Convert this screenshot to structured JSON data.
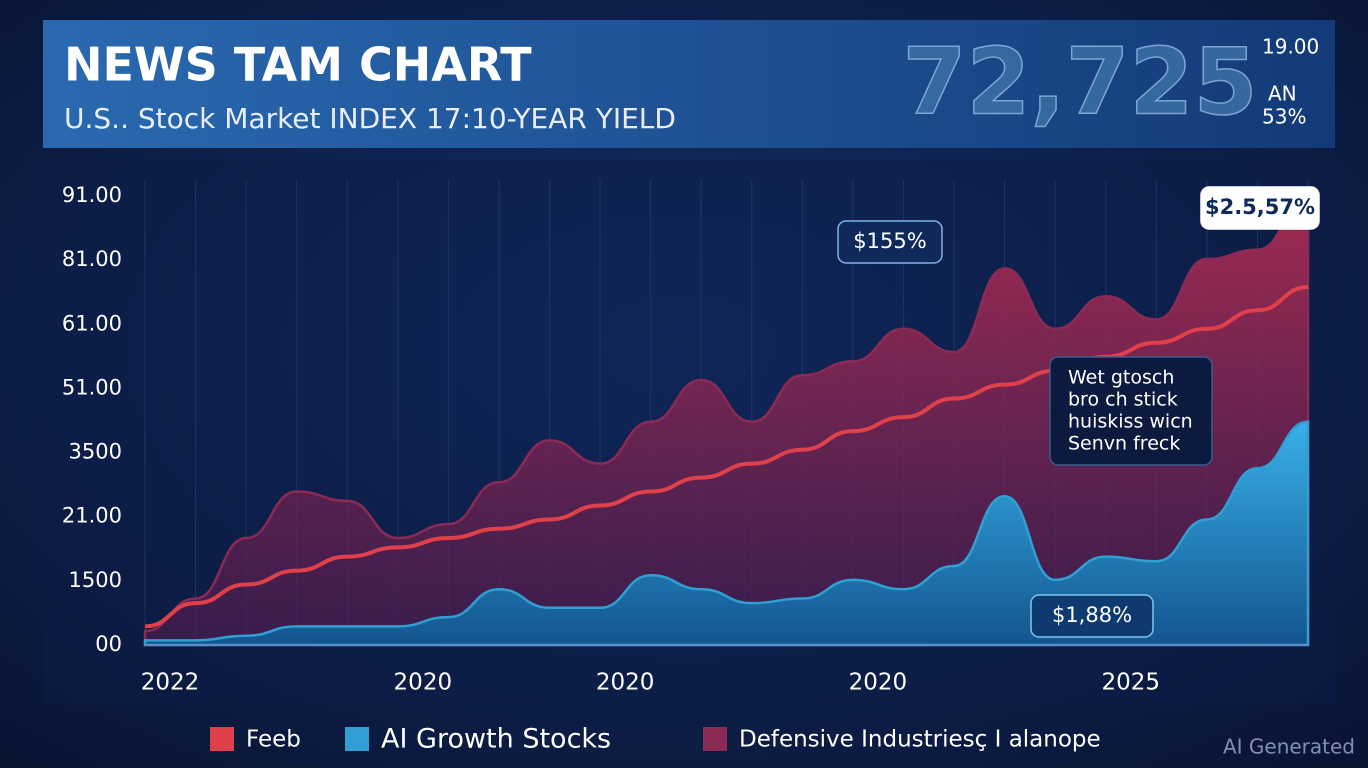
{
  "chart_data": {
    "type": "area",
    "title": "NEWS TAM CHART",
    "subtitle": "U.S.. Stock Market INDEX 17:10-YEAR YIELD",
    "headline_number": "72,725",
    "headline_side": [
      "19.00",
      "AN",
      "53%"
    ],
    "y_axis_labels": [
      "91.00",
      "81.00",
      "61.00",
      "51.00",
      "3500",
      "21.00",
      "1500",
      "00"
    ],
    "ylim": [
      0,
      100
    ],
    "categories": [
      "2022",
      null,
      null,
      null,
      null,
      "2020",
      null,
      null,
      null,
      "2020",
      null,
      null,
      null,
      null,
      "2020",
      null,
      null,
      null,
      null,
      "2025",
      null,
      null,
      null,
      null
    ],
    "series": [
      {
        "name": "Feeb",
        "color": "#e0404a",
        "kind": "line",
        "values": [
          4,
          9,
          13,
          16,
          19,
          21,
          23,
          25,
          27,
          30,
          33,
          36,
          39,
          42,
          46,
          49,
          53,
          56,
          59,
          62,
          65,
          68,
          72,
          77
        ]
      },
      {
        "name": "AI Growth Stocks",
        "color": "#2f9fd4",
        "kind": "area",
        "values": [
          1,
          1,
          2,
          4,
          4,
          4,
          6,
          12,
          8,
          8,
          15,
          12,
          9,
          10,
          14,
          12,
          17,
          32,
          14,
          19,
          18,
          27,
          38,
          48
        ]
      },
      {
        "name": "Defensive Industriesç I alanope",
        "color": "#8a2a55",
        "kind": "area",
        "values": [
          3,
          10,
          23,
          33,
          31,
          23,
          26,
          35,
          44,
          39,
          48,
          57,
          48,
          58,
          61,
          68,
          63,
          81,
          68,
          75,
          70,
          83,
          85,
          96
        ]
      }
    ],
    "annotations": [
      "$155%",
      "$2.5,57%",
      "$1,88%"
    ],
    "note": [
      "Wet gtosch",
      "bro ch stick",
      "huiskiss wicn",
      "Senvn freck"
    ],
    "watermark": "AI Generated"
  }
}
